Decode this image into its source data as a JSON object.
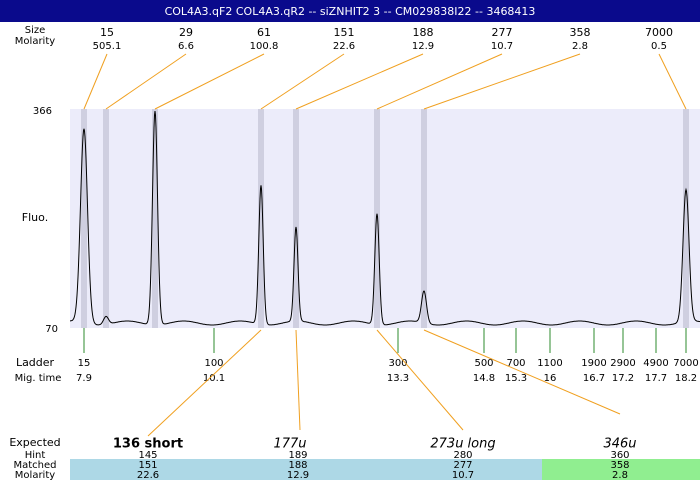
{
  "title": "COL4A3.qF2 COL4A3.qR2 -- siZNHIT2 3 -- CM029838I22 -- 3468413",
  "header_labels": {
    "size": "Size",
    "molarity": "Molarity"
  },
  "top_peaks": {
    "sizes": [
      15,
      29,
      61,
      151,
      188,
      277,
      358,
      7000
    ],
    "molarity": [
      505.1,
      6.6,
      100.8,
      22.6,
      12.9,
      10.7,
      2.8,
      0.5
    ]
  },
  "y_axis": {
    "label": "Fluo.",
    "top": "366",
    "bottom": "70"
  },
  "ladder": {
    "label": "Ladder",
    "mig_label": "Mig. time",
    "sizes": [
      15,
      100,
      300,
      500,
      700,
      1100,
      1900,
      2900,
      4900,
      7000
    ],
    "mig_times": [
      7.9,
      10.1,
      13.3,
      14.8,
      15.3,
      16,
      16.7,
      17.2,
      17.7,
      18.2
    ]
  },
  "expected": {
    "label": "Expected",
    "names": [
      "136 short",
      "177u",
      "273u long",
      "346u"
    ],
    "hint_label": "Hint",
    "hints": [
      145,
      189,
      280,
      360
    ],
    "matched_label": "Matched",
    "matched": [
      151,
      188,
      277,
      358
    ],
    "molarity_label": "Molarity",
    "molarity": [
      22.6,
      12.9,
      10.7,
      2.8
    ]
  }
}
